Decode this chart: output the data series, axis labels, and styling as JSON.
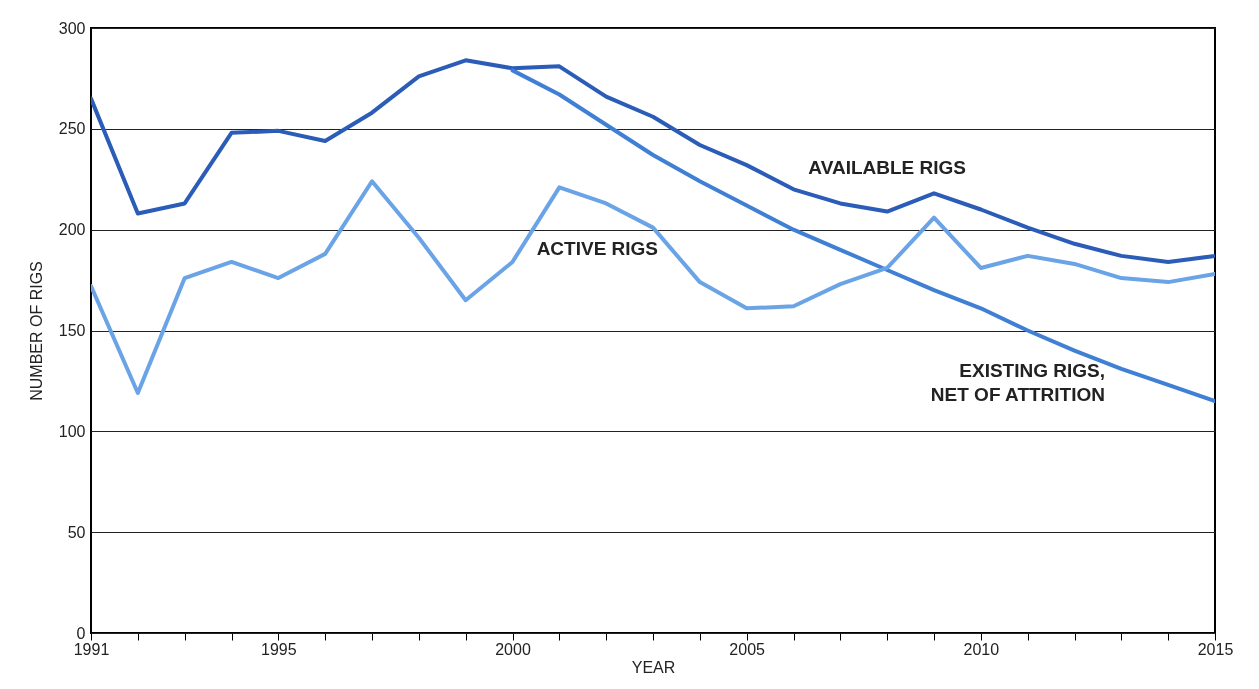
{
  "chart_data": {
    "type": "line",
    "xlabel": "YEAR",
    "ylabel": "NUMBER OF RIGS",
    "x": [
      1991,
      1992,
      1993,
      1994,
      1995,
      1996,
      1997,
      1998,
      1999,
      2000,
      2001,
      2002,
      2003,
      2004,
      2005,
      2006,
      2007,
      2008,
      2009,
      2010,
      2011,
      2012,
      2013,
      2014,
      2015
    ],
    "series": [
      {
        "name": "AVAILABLE RIGS",
        "color": "#2a5cb8",
        "values": [
          265,
          208,
          213,
          248,
          249,
          244,
          258,
          276,
          284,
          280,
          281,
          266,
          256,
          242,
          232,
          220,
          213,
          209,
          218,
          210,
          201,
          193,
          187,
          184,
          187
        ]
      },
      {
        "name": "EXISTING RIGS,\nNET OF ATTRITION",
        "color": "#3f7fd4",
        "x": [
          2000,
          2001,
          2002,
          2003,
          2004,
          2005,
          2006,
          2007,
          2008,
          2009,
          2010,
          2011,
          2012,
          2013,
          2014,
          2015
        ],
        "values": [
          279,
          267,
          252,
          237,
          224,
          212,
          200,
          190,
          180,
          170,
          161,
          150,
          140,
          131,
          123,
          115
        ]
      },
      {
        "name": "ACTIVE RIGS",
        "color": "#6aa4e6",
        "values": [
          172,
          119,
          176,
          184,
          176,
          188,
          224,
          196,
          165,
          184,
          221,
          213,
          201,
          174,
          161,
          162,
          173,
          181,
          206,
          181,
          187,
          183,
          176,
          174,
          178
        ]
      }
    ],
    "xlim": [
      1991,
      2015
    ],
    "xticks": [
      1991,
      {
        "value": 1992,
        "label": null
      },
      {
        "value": 1993,
        "label": null
      },
      {
        "value": 1994,
        "label": null
      },
      1995,
      {
        "value": 1996,
        "label": null
      },
      {
        "value": 1997,
        "label": null
      },
      {
        "value": 1998,
        "label": null
      },
      {
        "value": 1999,
        "label": null
      },
      2000,
      {
        "value": 2001,
        "label": null
      },
      {
        "value": 2002,
        "label": null
      },
      {
        "value": 2003,
        "label": null
      },
      {
        "value": 2004,
        "label": null
      },
      2005,
      {
        "value": 2006,
        "label": null
      },
      {
        "value": 2007,
        "label": null
      },
      {
        "value": 2008,
        "label": null
      },
      {
        "value": 2009,
        "label": null
      },
      2010,
      {
        "value": 2011,
        "label": null
      },
      {
        "value": 2012,
        "label": null
      },
      {
        "value": 2013,
        "label": null
      },
      {
        "value": 2014,
        "label": null
      },
      2015
    ],
    "ylim": [
      0,
      300
    ],
    "yticks": [
      0,
      50,
      100,
      150,
      200,
      250,
      300
    ],
    "grid": "y",
    "marker": "none",
    "line_style": "solid"
  }
}
